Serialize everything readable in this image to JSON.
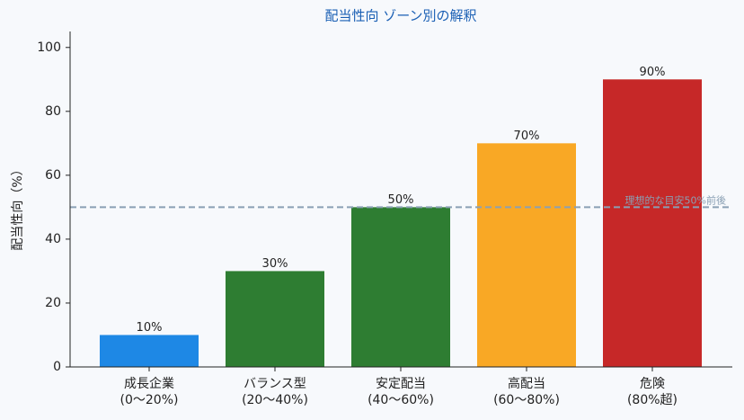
{
  "chart_data": {
    "type": "bar",
    "title": "配当性向 ゾーン別の解釈",
    "ylabel": "配当性向（%）",
    "categories": [
      "成長企業\n(0〜20%)",
      "バランス型\n(20〜40%)",
      "安定配当\n(40〜60%)",
      "高配当\n(60〜80%)",
      "危険\n(80%超)"
    ],
    "values": [
      10,
      30,
      50,
      70,
      90
    ],
    "value_labels": [
      "10%",
      "30%",
      "50%",
      "70%",
      "90%"
    ],
    "colors": [
      "#1e88e5",
      "#2e7d32",
      "#2e7d32",
      "#f9a825",
      "#c62828"
    ],
    "ylim": [
      0,
      105
    ],
    "yticks": [
      0,
      20,
      40,
      60,
      80,
      100
    ],
    "reference_line": {
      "value": 50,
      "label": "理想的な目安50%前後",
      "color": "#8aa0b4"
    }
  }
}
